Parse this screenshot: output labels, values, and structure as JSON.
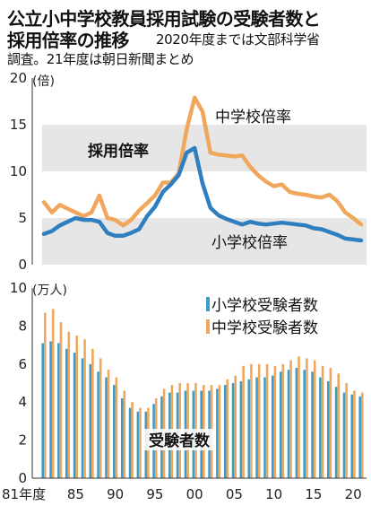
{
  "header": {
    "title_line1": "公立小中学校教員採用試験の受験者数と",
    "title_line2": "採用倍率の推移",
    "source_line1": "2020年度までは文部科学省",
    "source_line2": "調査。21年度は朝日新聞まとめ"
  },
  "colors": {
    "elementary": "#2f7fc0",
    "junior_high": "#f0a75c",
    "band": "#e6e6e6",
    "bar_elementary": "#3a9cc8"
  },
  "chart_data": [
    {
      "type": "line",
      "title": "採用倍率",
      "unit_label": "(倍)",
      "ylim": [
        0,
        20
      ],
      "y_ticks": [
        "0",
        "5",
        "10",
        "15",
        "20"
      ],
      "x": [
        1981,
        1982,
        1983,
        1984,
        1985,
        1986,
        1987,
        1988,
        1989,
        1990,
        1991,
        1992,
        1993,
        1994,
        1995,
        1996,
        1997,
        1998,
        1999,
        2000,
        2001,
        2002,
        2003,
        2004,
        2005,
        2006,
        2007,
        2008,
        2009,
        2010,
        2011,
        2012,
        2013,
        2014,
        2015,
        2016,
        2017,
        2018,
        2019,
        2020,
        2021
      ],
      "series": [
        {
          "name": "中学校倍率",
          "values": [
            6.7,
            5.6,
            6.4,
            6.0,
            5.6,
            5.2,
            5.6,
            7.4,
            5.0,
            4.8,
            4.2,
            4.8,
            5.8,
            6.6,
            7.4,
            8.8,
            8.8,
            9.8,
            14.5,
            17.9,
            16.4,
            12.0,
            11.8,
            11.7,
            11.6,
            11.7,
            10.5,
            9.6,
            8.9,
            8.4,
            8.6,
            7.8,
            7.6,
            7.5,
            7.3,
            7.2,
            7.5,
            6.8,
            5.6,
            5.0,
            4.3
          ]
        },
        {
          "name": "小学校倍率",
          "values": [
            3.3,
            3.6,
            4.2,
            4.6,
            5.0,
            4.8,
            4.8,
            4.6,
            3.4,
            3.1,
            3.1,
            3.4,
            3.8,
            5.2,
            6.2,
            7.8,
            8.6,
            9.6,
            12.0,
            12.5,
            8.7,
            6.1,
            5.3,
            4.9,
            4.6,
            4.3,
            4.6,
            4.4,
            4.3,
            4.4,
            4.5,
            4.4,
            4.3,
            4.2,
            3.9,
            3.8,
            3.5,
            3.2,
            2.8,
            2.7,
            2.6
          ]
        }
      ]
    },
    {
      "type": "bar",
      "title": "受験者数",
      "unit_label": "(万人)",
      "ylim": [
        0,
        10
      ],
      "y_ticks": [
        "0",
        "2",
        "4",
        "6",
        "8",
        "10"
      ],
      "x_ticks": [
        "81年度",
        "85",
        "90",
        "95",
        "00",
        "05",
        "10",
        "15",
        "20"
      ],
      "categories": [
        1981,
        1982,
        1983,
        1984,
        1985,
        1986,
        1987,
        1988,
        1989,
        1990,
        1991,
        1992,
        1993,
        1994,
        1995,
        1996,
        1997,
        1998,
        1999,
        2000,
        2001,
        2002,
        2003,
        2004,
        2005,
        2006,
        2007,
        2008,
        2009,
        2010,
        2011,
        2012,
        2013,
        2014,
        2015,
        2016,
        2017,
        2018,
        2019,
        2020,
        2021
      ],
      "series": [
        {
          "name": "小学校受験者数",
          "values": [
            7.1,
            7.2,
            7.1,
            6.8,
            6.6,
            6.3,
            6.0,
            5.6,
            5.3,
            4.9,
            4.2,
            3.7,
            3.5,
            3.5,
            3.9,
            4.3,
            4.5,
            4.5,
            4.6,
            4.6,
            4.6,
            4.6,
            4.7,
            4.9,
            5.0,
            5.1,
            5.2,
            5.3,
            5.3,
            5.4,
            5.6,
            5.7,
            5.8,
            5.7,
            5.6,
            5.3,
            5.1,
            4.8,
            4.5,
            4.4,
            4.3
          ]
        },
        {
          "name": "中学校受験者数",
          "values": [
            8.7,
            8.9,
            8.2,
            7.7,
            7.5,
            7.3,
            6.8,
            6.3,
            5.7,
            5.3,
            4.6,
            4.0,
            3.7,
            3.7,
            4.2,
            4.7,
            4.9,
            5.0,
            5.0,
            5.0,
            4.9,
            4.9,
            4.9,
            5.2,
            5.4,
            5.9,
            6.0,
            6.0,
            6.0,
            5.9,
            6.0,
            6.2,
            6.4,
            6.3,
            6.2,
            5.9,
            5.8,
            5.5,
            5.0,
            4.6,
            4.5
          ]
        }
      ],
      "legend_position": "top-right"
    }
  ]
}
